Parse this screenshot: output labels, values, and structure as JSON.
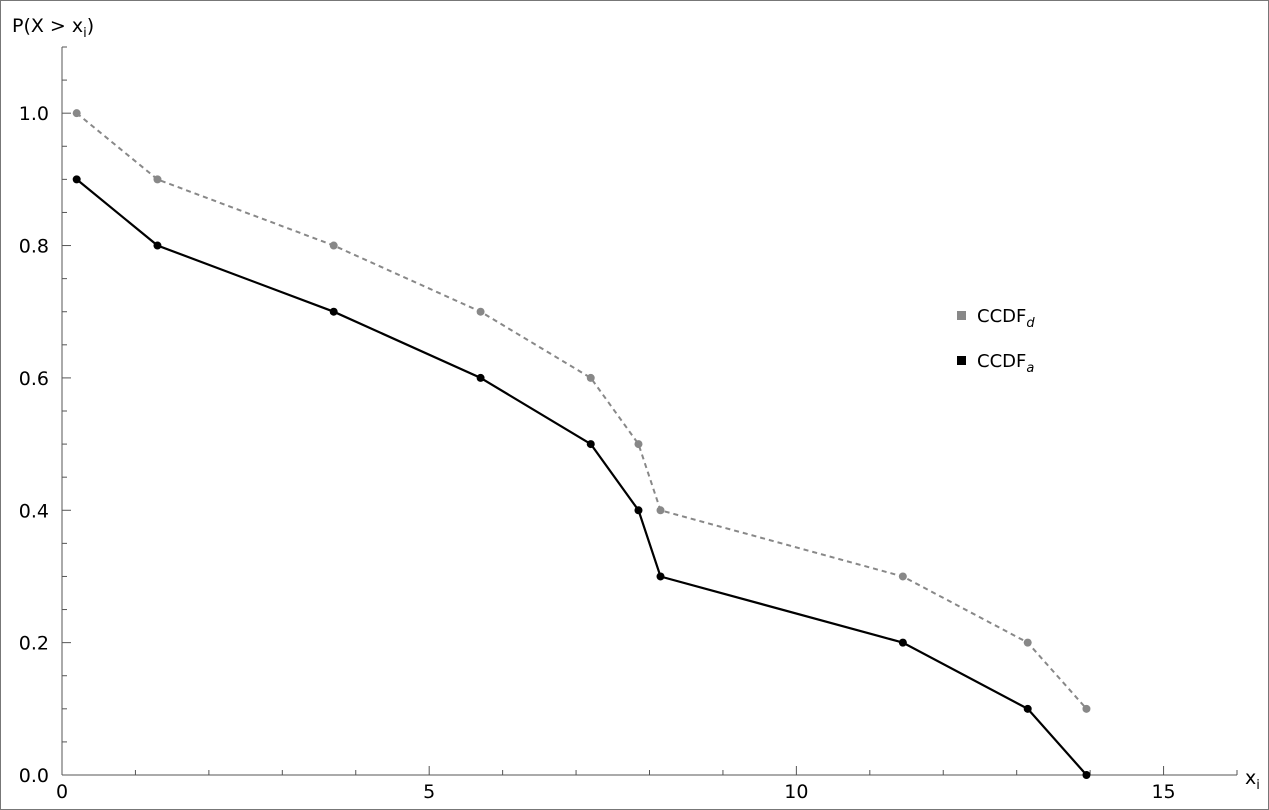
{
  "chart_data": {
    "type": "line",
    "xlabel": "x",
    "xlabel_sub": "i",
    "ylabel": "P(X > x",
    "ylabel_sub": "i",
    "ylabel_suffix": ")",
    "xlim": [
      0,
      16
    ],
    "ylim": [
      0,
      1.1
    ],
    "x_ticks": [
      0,
      5,
      10,
      15
    ],
    "y_ticks": [
      "0.0",
      "0.2",
      "0.4",
      "0.6",
      "0.8",
      "1.0"
    ],
    "grid": false,
    "legend_position": "right",
    "series": [
      {
        "name": "CCDF",
        "name_sub": "d",
        "color": "#888888",
        "dashed": true,
        "x": [
          0.2,
          1.3,
          3.7,
          5.7,
          7.2,
          7.85,
          8.15,
          11.45,
          13.15,
          13.95
        ],
        "y": [
          1.0,
          0.9,
          0.8,
          0.7,
          0.6,
          0.5,
          0.4,
          0.3,
          0.2,
          0.1
        ]
      },
      {
        "name": "CCDF",
        "name_sub": "a",
        "color": "#000000",
        "dashed": false,
        "x": [
          0.2,
          1.3,
          3.7,
          5.7,
          7.2,
          7.85,
          8.15,
          11.45,
          13.15,
          13.95
        ],
        "y": [
          0.9,
          0.8,
          0.7,
          0.6,
          0.5,
          0.4,
          0.3,
          0.2,
          0.1,
          0.0
        ]
      }
    ]
  }
}
